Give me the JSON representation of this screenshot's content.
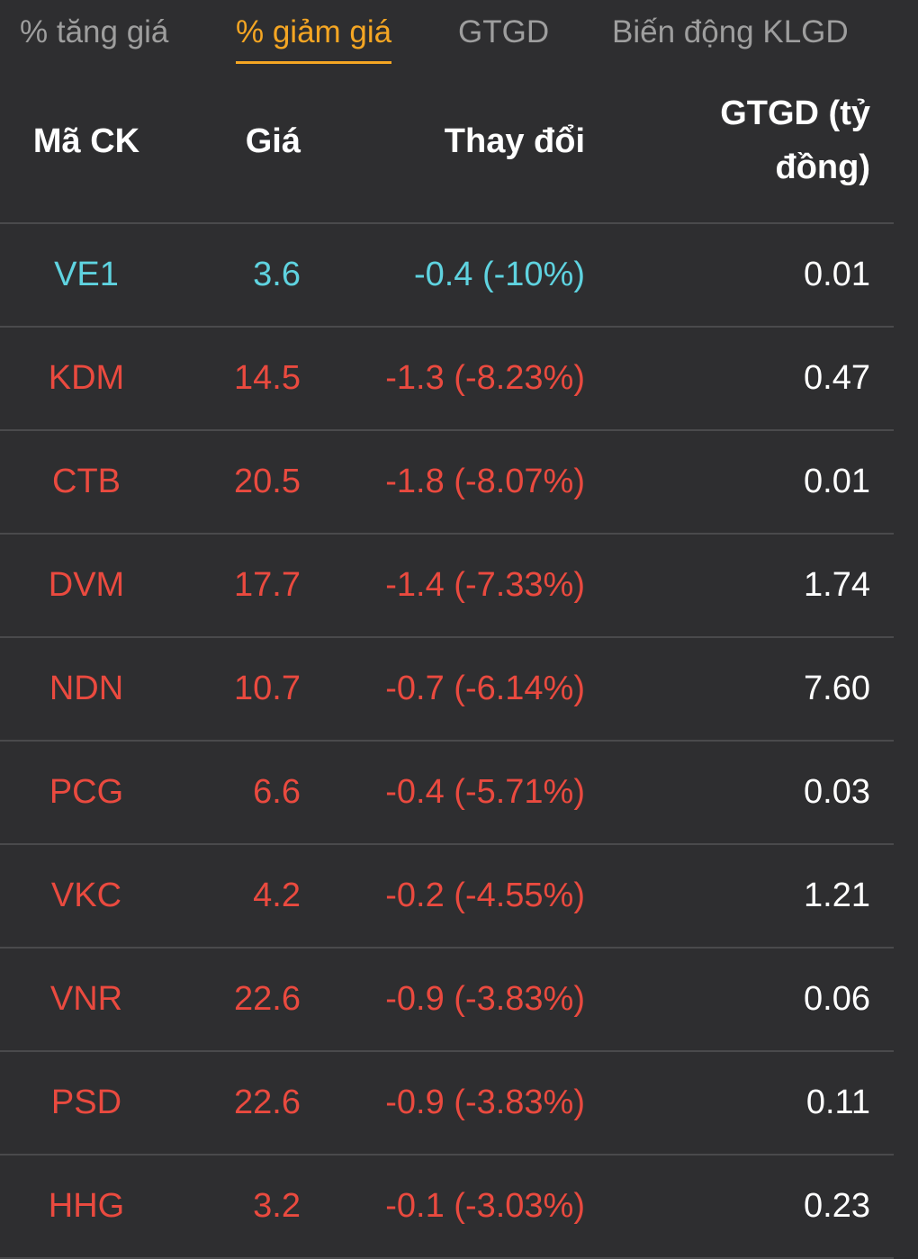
{
  "tabs": [
    {
      "label": "% tăng giá",
      "active": false
    },
    {
      "label": "% giảm giá",
      "active": true
    },
    {
      "label": "GTGD",
      "active": false
    },
    {
      "label": "Biến động KLGD",
      "active": false
    }
  ],
  "table": {
    "headers": {
      "code": "Mã CK",
      "price": "Giá",
      "change": "Thay đổi",
      "value": "GTGD (tỷ đồng)"
    },
    "rows": [
      {
        "code": "VE1",
        "price": "3.6",
        "change": "-0.4 (-10%)",
        "value": "0.01",
        "status": "floor"
      },
      {
        "code": "KDM",
        "price": "14.5",
        "change": "-1.3 (-8.23%)",
        "value": "0.47",
        "status": "down"
      },
      {
        "code": "CTB",
        "price": "20.5",
        "change": "-1.8 (-8.07%)",
        "value": "0.01",
        "status": "down"
      },
      {
        "code": "DVM",
        "price": "17.7",
        "change": "-1.4 (-7.33%)",
        "value": "1.74",
        "status": "down"
      },
      {
        "code": "NDN",
        "price": "10.7",
        "change": "-0.7 (-6.14%)",
        "value": "7.60",
        "status": "down"
      },
      {
        "code": "PCG",
        "price": "6.6",
        "change": "-0.4 (-5.71%)",
        "value": "0.03",
        "status": "down"
      },
      {
        "code": "VKC",
        "price": "4.2",
        "change": "-0.2 (-4.55%)",
        "value": "1.21",
        "status": "down"
      },
      {
        "code": "VNR",
        "price": "22.6",
        "change": "-0.9 (-3.83%)",
        "value": "0.06",
        "status": "down"
      },
      {
        "code": "PSD",
        "price": "22.6",
        "change": "-0.9 (-3.83%)",
        "value": "0.11",
        "status": "down"
      },
      {
        "code": "HHG",
        "price": "3.2",
        "change": "-0.1 (-3.03%)",
        "value": "0.23",
        "status": "down"
      }
    ]
  },
  "colors": {
    "background": "#2e2e30",
    "active_tab": "#f5a623",
    "floor": "#5fd3e0",
    "down": "#ea4a3f",
    "text": "#ffffff",
    "inactive_tab": "#9e9e9e",
    "divider": "#4a4a4c"
  }
}
